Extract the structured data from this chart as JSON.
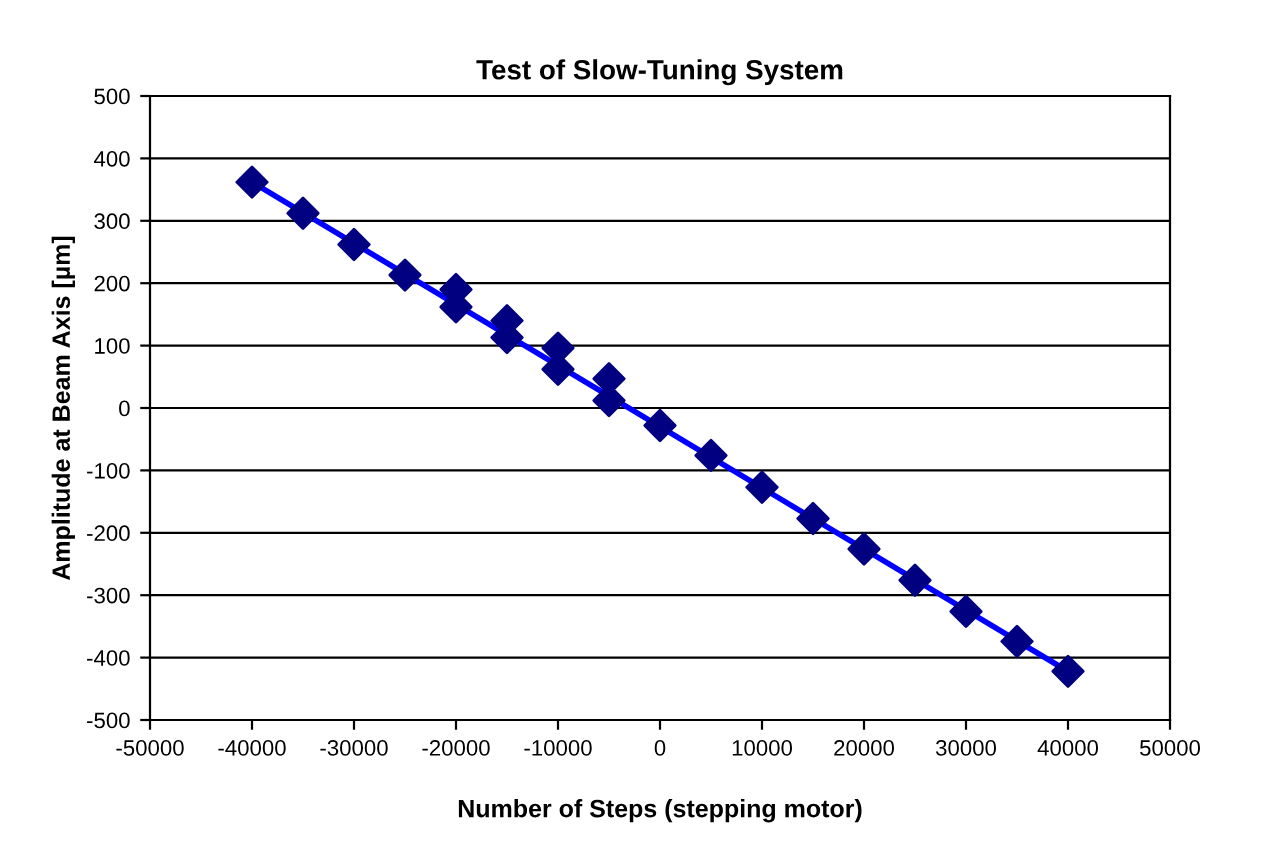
{
  "chart_data": {
    "type": "scatter",
    "title": "Test of Slow-Tuning System",
    "xlabel": "Number of Steps (stepping motor)",
    "ylabel": "Amplitude at Beam Axis [µm]",
    "series": [
      {
        "color": "#000080",
        "marker": "diamond",
        "x": [
          -40000,
          -35000,
          -30000,
          -25000,
          -20000,
          -20000,
          -15000,
          -15000,
          -10000,
          -10000,
          -5000,
          -5000,
          0,
          5000,
          10000,
          15000,
          20000,
          25000,
          30000,
          35000,
          40000
        ],
        "values": [
          362,
          312,
          262,
          213,
          190,
          162,
          140,
          113,
          96,
          62,
          47,
          12,
          -28,
          -76,
          -127,
          -177,
          -226,
          -276,
          -326,
          -374,
          -422
        ]
      },
      {
        "type": "line",
        "color": "#0000ff",
        "marker": "none",
        "x": [
          -40000,
          40000
        ],
        "values": [
          362,
          -422
        ]
      }
    ],
    "xlim": [
      -50000,
      50000
    ],
    "xticks": [
      -50000,
      -40000,
      -30000,
      -20000,
      -10000,
      0,
      10000,
      20000,
      30000,
      40000,
      50000
    ],
    "ylim": [
      -500,
      500
    ],
    "yticks": [
      -500,
      -400,
      -300,
      -200,
      -100,
      0,
      100,
      200,
      300,
      400,
      500
    ],
    "grid": "y",
    "legend": false
  }
}
